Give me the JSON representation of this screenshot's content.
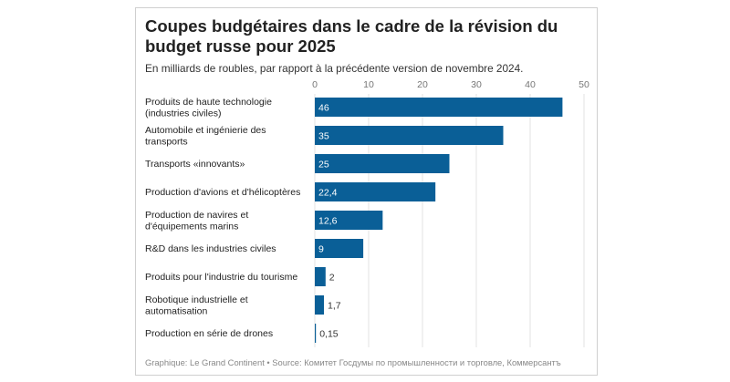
{
  "chart_data": {
    "type": "bar",
    "orientation": "horizontal",
    "title": "Coupes budgétaires dans le cadre de la révision du budget russe pour 2025",
    "subtitle": "En milliards de roubles, par rapport à la précédente version de novembre 2024.",
    "categories": [
      "Produits de haute technologie (industries civiles)",
      "Automobile et ingénierie des transports",
      "Transports «innovants»",
      "Production d'avions et d'hélicoptères",
      "Production de navires et d'équipements marins",
      "R&D dans les industries civiles",
      "Produits pour l'industrie du tourisme",
      "Robotique industrielle et automatisation",
      "Production en série de drones"
    ],
    "values": [
      46,
      35,
      25,
      22.4,
      12.6,
      9,
      2,
      1.7,
      0.15
    ],
    "value_labels": [
      "46",
      "35",
      "25",
      "22,4",
      "12,6",
      "9",
      "2",
      "1,7",
      "0,15"
    ],
    "xlim": [
      0,
      50
    ],
    "xticks": [
      0,
      10,
      20,
      30,
      40,
      50
    ],
    "xtick_labels": [
      "0",
      "10",
      "20",
      "30",
      "40",
      "50"
    ],
    "grid": true,
    "bar_color": "#0a5f97",
    "source": "Graphique: Le Grand Continent • Source: Комитет Госдумы по промышленности и торговле, Коммерсантъ"
  }
}
